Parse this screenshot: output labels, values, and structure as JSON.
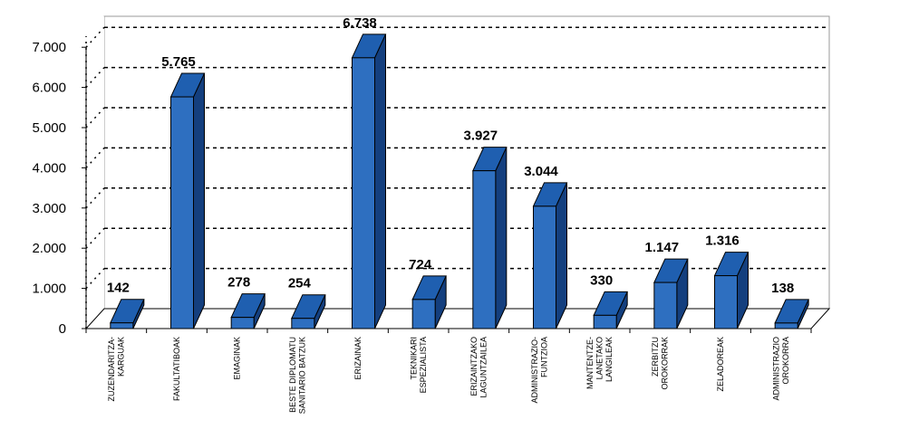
{
  "chart_data": {
    "type": "bar",
    "style": "3d-column",
    "title": "",
    "xlabel": "",
    "ylabel": "",
    "ylim": [
      0,
      7000
    ],
    "yticks": [
      0,
      1000,
      2000,
      3000,
      4000,
      5000,
      6000,
      7000
    ],
    "ytick_labels": [
      "0",
      "1.000",
      "2.000",
      "3.000",
      "4.000",
      "5.000",
      "6.000",
      "7.000"
    ],
    "grid": true,
    "legend": "none",
    "categories": [
      [
        "ZUZENDARITZA-",
        "KARGUAK"
      ],
      [
        "FAKULTATIBOAK"
      ],
      [
        "EMAGINAK"
      ],
      [
        "BESTE DIPLOMATU",
        "SANITARIO BATZUK"
      ],
      [
        "ERIZAINAK"
      ],
      [
        "TEKNIKARI",
        "ESPEZIALISTA"
      ],
      [
        "ERIZAINTZAKO",
        "LAGUNTZAILEA"
      ],
      [
        "ADMINISTRAZIO-",
        "FUNTZIOA"
      ],
      [
        "MANTENTZE-",
        "LANETAKO",
        "LANGILEAK"
      ],
      [
        "ZERBITZU",
        "OROKORRAK"
      ],
      [
        "ZELADOREAK"
      ],
      [
        "ADMINISTRAZIO",
        "OROKORRA"
      ]
    ],
    "values": [
      142,
      5765,
      278,
      254,
      6738,
      724,
      3927,
      3044,
      330,
      1147,
      1316,
      138
    ],
    "value_labels": [
      "142",
      "5.765",
      "278",
      "254",
      "6.738",
      "724",
      "3.927",
      "3.044",
      "330",
      "1.147",
      "1.316",
      "138"
    ],
    "colors": {
      "bar_front": "#2e6fc0",
      "bar_top": "#1f5fb0",
      "bar_side": "#143f7e",
      "grid": "#000000",
      "wall": "#ffffff",
      "wall_border": "#999999"
    }
  }
}
